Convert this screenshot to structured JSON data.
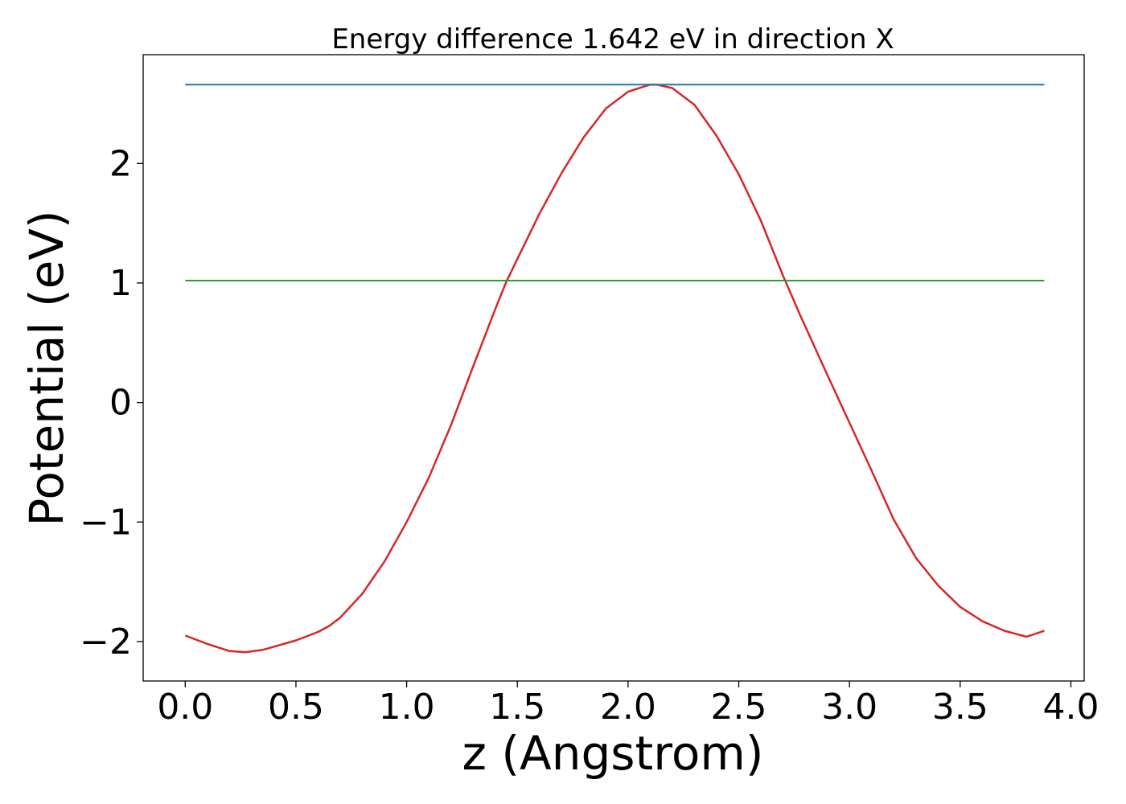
{
  "chart_data": {
    "type": "line",
    "title": "Energy difference 1.642 eV in direction X",
    "xlabel": "z (Angstrom)",
    "ylabel": "Potential (eV)",
    "xlim": [
      -0.19,
      4.06
    ],
    "ylim": [
      -2.33,
      2.91
    ],
    "xticks": [
      0.0,
      0.5,
      1.0,
      1.5,
      2.0,
      2.5,
      3.0,
      3.5,
      4.0
    ],
    "xtick_labels": [
      "0.0",
      "0.5",
      "1.0",
      "1.5",
      "2.0",
      "2.5",
      "3.0",
      "3.5",
      "4.0"
    ],
    "yticks": [
      -2,
      -1,
      0,
      1,
      2
    ],
    "ytick_labels": [
      "−2",
      "−1",
      "0",
      "1",
      "2"
    ],
    "grid": false,
    "legend": "none",
    "series": [
      {
        "color": "#d62728",
        "x": [
          0.0,
          0.1,
          0.2,
          0.27,
          0.35,
          0.5,
          0.6,
          0.65,
          0.7,
          0.8,
          0.9,
          1.0,
          1.1,
          1.2,
          1.3,
          1.4,
          1.45,
          1.5,
          1.6,
          1.7,
          1.8,
          1.9,
          2.0,
          2.1,
          2.13,
          2.2,
          2.3,
          2.4,
          2.5,
          2.6,
          2.7,
          2.78,
          2.9,
          3.0,
          3.1,
          3.2,
          3.3,
          3.4,
          3.5,
          3.6,
          3.7,
          3.8,
          3.88
        ],
        "values": [
          -1.95,
          -2.02,
          -2.08,
          -2.09,
          -2.07,
          -1.99,
          -1.92,
          -1.87,
          -1.8,
          -1.6,
          -1.33,
          -1.0,
          -0.63,
          -0.19,
          0.3,
          0.78,
          1.01,
          1.2,
          1.58,
          1.92,
          2.22,
          2.46,
          2.6,
          2.66,
          2.66,
          2.63,
          2.49,
          2.23,
          1.91,
          1.52,
          1.06,
          0.72,
          0.23,
          -0.17,
          -0.57,
          -0.98,
          -1.3,
          -1.53,
          -1.71,
          -1.83,
          -1.91,
          -1.96,
          -1.91
        ]
      },
      {
        "color": "#1f77b4",
        "x": [
          0.0,
          3.88
        ],
        "values": [
          2.66,
          2.66
        ]
      },
      {
        "color": "#2ca02c",
        "x": [
          0.0,
          3.88
        ],
        "values": [
          1.02,
          1.02
        ]
      }
    ]
  }
}
